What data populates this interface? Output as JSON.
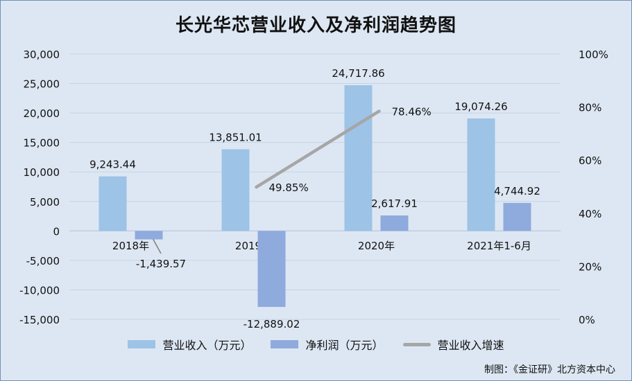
{
  "chart_data": {
    "type": "bar",
    "title": "长光华芯营业收入及净利润趋势图",
    "categories": [
      "2018年",
      "2019年",
      "2020年",
      "2021年1-6月"
    ],
    "series": [
      {
        "name": "营业收入（万元）",
        "type": "bar",
        "axis": "left",
        "color": "#9dc3e6",
        "values": [
          9243.44,
          13851.01,
          24717.86,
          19074.26
        ],
        "labels": [
          "9,243.44",
          "13,851.01",
          "24,717.86",
          "19,074.26"
        ]
      },
      {
        "name": "净利润（万元）",
        "type": "bar",
        "axis": "left",
        "color": "#8faadc",
        "values": [
          -1439.57,
          -12889.02,
          2617.91,
          4744.92
        ],
        "labels": [
          "-1,439.57",
          "-12,889.02",
          "2,617.91",
          "4,744.92"
        ]
      },
      {
        "name": "营业收入增速",
        "type": "line",
        "axis": "right",
        "color": "#a6a6a6",
        "x": [
          "2019年",
          "2020年"
        ],
        "values": [
          49.85,
          78.46
        ],
        "labels": [
          "49.85%",
          "78.46%"
        ]
      }
    ],
    "ylim_left": [
      -15000,
      30000
    ],
    "ylim_right": [
      0,
      100
    ],
    "yticks_left": [
      "30,000",
      "25,000",
      "20,000",
      "15,000",
      "10,000",
      "5,000",
      "0",
      "-5,000",
      "-10,000",
      "-15,000"
    ],
    "yticks_right": [
      "100%",
      "80%",
      "60%",
      "40%",
      "20%",
      "0%"
    ],
    "grid": true,
    "legend_position": "bottom"
  },
  "credit": "制图：《金证研》北方资本中心"
}
